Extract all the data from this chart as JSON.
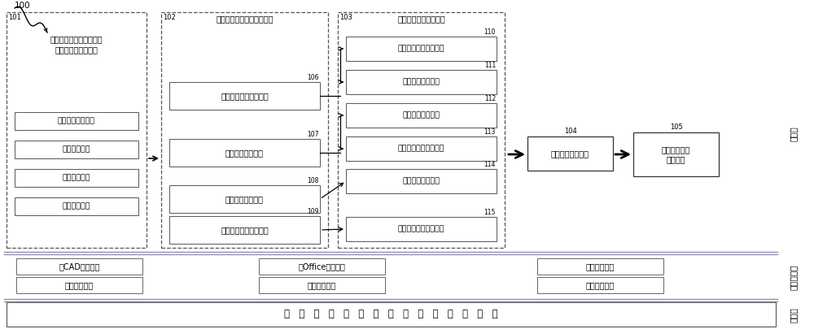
{
  "fig_width": 10.0,
  "fig_height": 4.05,
  "bg_color": "#ffffff",
  "label_100": "100",
  "label_101": "101",
  "label_102": "102",
  "label_103": "103",
  "label_104": "104",
  "label_105": "105",
  "label_106": "106",
  "label_107": "107",
  "label_108": "108",
  "label_109": "109",
  "label_110": "110",
  "label_111": "111",
  "label_112": "112",
  "label_113": "113",
  "label_114": "114",
  "label_115": "115",
  "box101_title": "基于三维模型的设计及工\n艺变更数据输入模块",
  "box101_sub": [
    "产品结构变更数据",
    "模型变更数据",
    "属性变更数据",
    "版本变更数据"
  ],
  "box102_text": "工艺数字样机变更管理模块",
  "box106_text": "产品结构变更管理模块",
  "box107_text": "属性变更管理模块",
  "box108_text": "模型变更管理模块",
  "box109_text": "工艺样机版本管理模块",
  "box103_text": "工艺文件变更管理模块",
  "box110_text": "工艺配套变更管理模块",
  "box111_text": "文本变更管理模块",
  "box112_text": "文本变更管理模块",
  "box113_text": "状态参数变更管理模块",
  "box114_text": "变更仿真验证模块",
  "box115_text": "工艺文件版本管理模块",
  "box104_text": "实施变更管理模块",
  "box105_text": "实做状态变更\n管理模块",
  "layer_app": "应用层",
  "layer_platform": "基础平台层",
  "layer_data": "数据层",
  "platform_boxes": [
    "与CAD集成模块",
    "与Office集成模块",
    "审批流程模块",
    "人员管理模块",
    "权限配置模块",
    "消息通知模块"
  ],
  "data_layer_text": "基   于   三   维   的   航   天   器   总   装   系   统   数   据   库"
}
